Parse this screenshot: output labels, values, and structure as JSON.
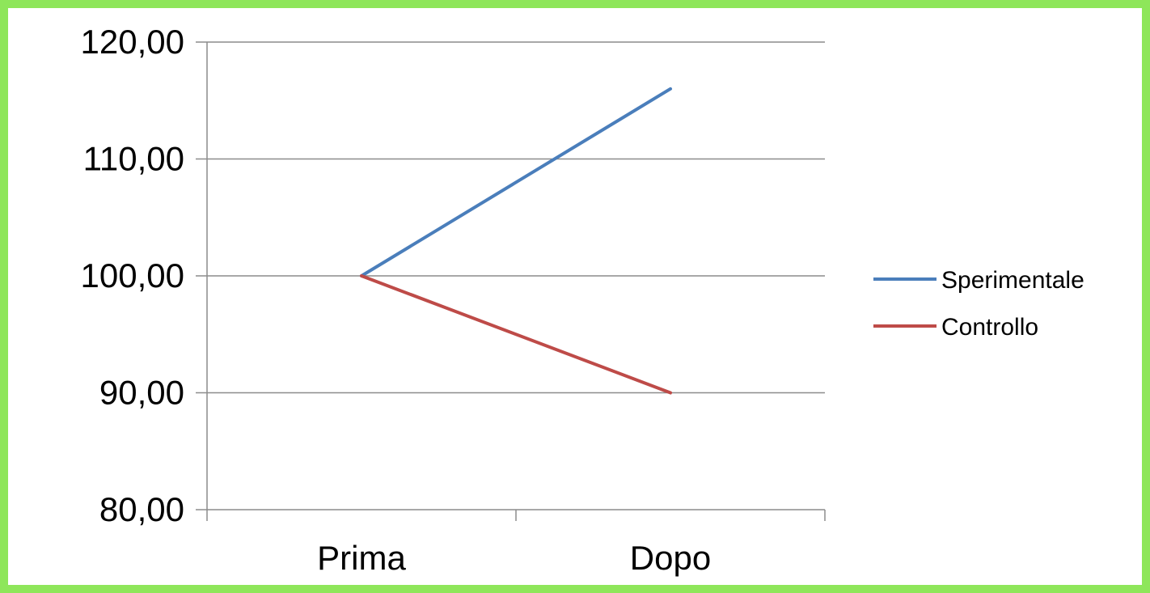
{
  "chart_data": {
    "type": "line",
    "categories": [
      "Prima",
      "Dopo"
    ],
    "series": [
      {
        "name": "Sperimentale",
        "values": [
          100.0,
          116.0
        ],
        "color": "#4a7ebb"
      },
      {
        "name": "Controllo",
        "values": [
          100.0,
          90.0
        ],
        "color": "#be4b48"
      }
    ],
    "ylim": [
      80,
      120
    ],
    "yticks": [
      "80,00",
      "90,00",
      "100,00",
      "110,00",
      "120,00"
    ],
    "ytick_values": [
      80,
      90,
      100,
      110,
      120
    ],
    "grid": true,
    "legend_position": "right",
    "gridline_color": "#8c8c8c",
    "axis_color": "#8c8c8c"
  }
}
